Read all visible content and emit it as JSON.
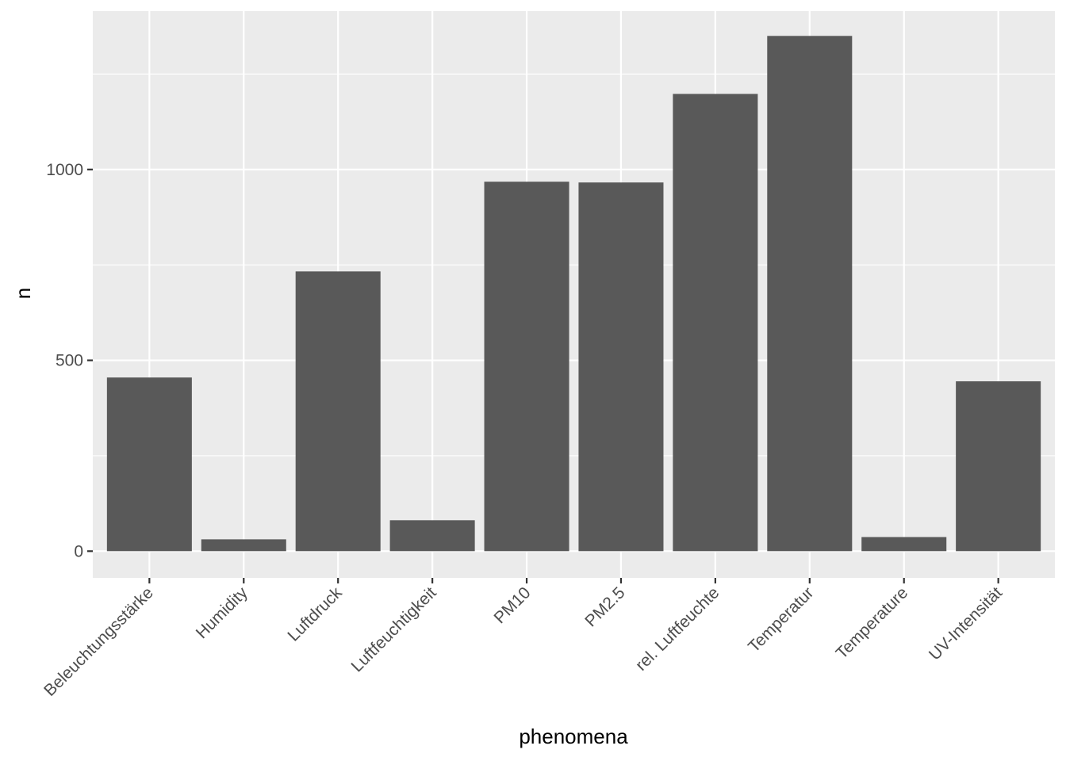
{
  "chart_data": {
    "type": "bar",
    "title": "",
    "xlabel": "phenomena",
    "ylabel": "n",
    "categories": [
      "Beleuchtungsstärke",
      "Humidity",
      "Luftdruck",
      "Luftfeuchtigkeit",
      "PM10",
      "PM2.5",
      "rel. Luftfeuchte",
      "Temperatur",
      "Temperature",
      "UV-Intensität"
    ],
    "values": [
      455,
      31,
      733,
      81,
      968,
      966,
      1198,
      1350,
      37,
      445
    ],
    "ylim": [
      -70,
      1415
    ],
    "yticks": [
      0,
      500,
      1000
    ],
    "ytick_labels": [
      "0",
      "500",
      "1000"
    ],
    "grid": true,
    "legend": "none",
    "colors": {
      "bar": "#595959",
      "panel": "#ebebeb",
      "grid_major": "#ffffff",
      "tick_text": "#4d4d4d",
      "tick_mark": "#333333"
    }
  }
}
